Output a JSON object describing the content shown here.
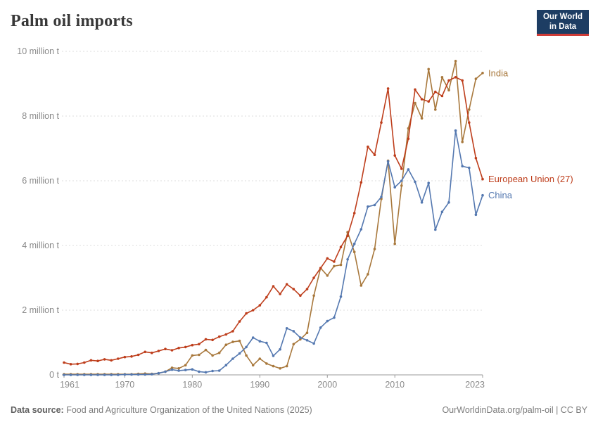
{
  "header": {
    "title": "Palm oil imports",
    "logo": {
      "line1": "Our World",
      "line2": "in Data"
    }
  },
  "footer": {
    "source_label": "Data source:",
    "source_text": " Food and Agriculture Organization of the United Nations (2025)",
    "right_text": "OurWorldinData.org/palm-oil | CC BY"
  },
  "chart_data": {
    "type": "line",
    "title": "Palm oil imports",
    "unit": "million tonnes",
    "grid": "horizontal dashed",
    "legend_position": "end-of-line labels",
    "xlim": [
      1961,
      2023
    ],
    "ylim": [
      0,
      10
    ],
    "x_ticks": [
      1961,
      1970,
      1980,
      1990,
      2000,
      2010,
      2023
    ],
    "y_ticks": [
      {
        "value": 0,
        "label": "0 t"
      },
      {
        "value": 2,
        "label": "2 million t"
      },
      {
        "value": 4,
        "label": "4 million t"
      },
      {
        "value": 6,
        "label": "6 million t"
      },
      {
        "value": 8,
        "label": "8 million t"
      },
      {
        "value": 10,
        "label": "10 million t"
      }
    ],
    "years": [
      1961,
      1962,
      1963,
      1964,
      1965,
      1966,
      1967,
      1968,
      1969,
      1970,
      1971,
      1972,
      1973,
      1974,
      1975,
      1976,
      1977,
      1978,
      1979,
      1980,
      1981,
      1982,
      1983,
      1984,
      1985,
      1986,
      1987,
      1988,
      1989,
      1990,
      1991,
      1992,
      1993,
      1994,
      1995,
      1996,
      1997,
      1998,
      1999,
      2000,
      2001,
      2002,
      2003,
      2004,
      2005,
      2006,
      2007,
      2008,
      2009,
      2010,
      2011,
      2012,
      2013,
      2014,
      2015,
      2016,
      2017,
      2018,
      2019,
      2020,
      2021,
      2022,
      2023
    ],
    "series": [
      {
        "name": "India",
        "color": "#a8783c",
        "values": [
          0.02,
          0.02,
          0.02,
          0.02,
          0.02,
          0.02,
          0.02,
          0.02,
          0.02,
          0.02,
          0.02,
          0.03,
          0.04,
          0.03,
          0.05,
          0.1,
          0.22,
          0.2,
          0.3,
          0.6,
          0.62,
          0.77,
          0.6,
          0.68,
          0.93,
          1.02,
          1.05,
          0.6,
          0.3,
          0.5,
          0.35,
          0.27,
          0.2,
          0.27,
          0.95,
          1.1,
          1.3,
          2.45,
          3.3,
          3.07,
          3.36,
          3.4,
          4.41,
          3.8,
          2.76,
          3.11,
          3.89,
          5.44,
          6.62,
          4.05,
          5.85,
          7.62,
          8.4,
          7.93,
          9.45,
          8.2,
          9.2,
          8.8,
          9.7,
          7.2,
          8.2,
          9.15,
          9.33
        ]
      },
      {
        "name": "European Union (27)",
        "color": "#be3e1c",
        "values": [
          0.38,
          0.33,
          0.34,
          0.38,
          0.45,
          0.43,
          0.48,
          0.45,
          0.5,
          0.55,
          0.57,
          0.62,
          0.71,
          0.68,
          0.74,
          0.8,
          0.76,
          0.83,
          0.86,
          0.92,
          0.95,
          1.1,
          1.08,
          1.18,
          1.25,
          1.35,
          1.65,
          1.9,
          2.0,
          2.15,
          2.4,
          2.74,
          2.5,
          2.8,
          2.65,
          2.45,
          2.65,
          3.0,
          3.3,
          3.6,
          3.5,
          3.95,
          4.3,
          5.0,
          5.95,
          7.05,
          6.8,
          7.8,
          8.85,
          6.78,
          6.37,
          7.3,
          8.82,
          8.52,
          8.45,
          8.75,
          8.62,
          9.1,
          9.2,
          9.1,
          7.8,
          6.7,
          6.05
        ]
      },
      {
        "name": "China",
        "color": "#5478b0",
        "values": [
          0.0,
          0.0,
          0.0,
          0.0,
          0.0,
          0.0,
          0.0,
          0.0,
          0.0,
          0.01,
          0.01,
          0.01,
          0.01,
          0.02,
          0.05,
          0.1,
          0.16,
          0.13,
          0.15,
          0.17,
          0.1,
          0.08,
          0.12,
          0.13,
          0.3,
          0.5,
          0.66,
          0.86,
          1.15,
          1.04,
          0.99,
          0.59,
          0.79,
          1.44,
          1.35,
          1.15,
          1.07,
          0.97,
          1.46,
          1.66,
          1.77,
          2.42,
          3.57,
          4.05,
          4.5,
          5.2,
          5.25,
          5.5,
          6.6,
          5.8,
          6.0,
          6.35,
          5.97,
          5.33,
          5.93,
          4.49,
          5.04,
          5.33,
          7.55,
          6.45,
          6.4,
          4.95,
          5.55
        ]
      }
    ]
  }
}
